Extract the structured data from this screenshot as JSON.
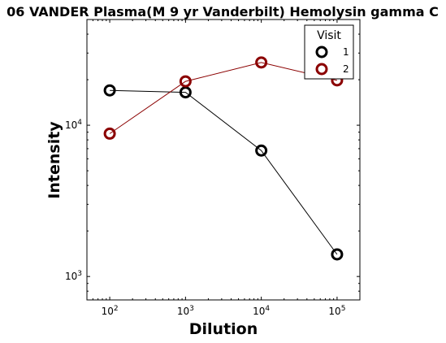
{
  "chart_data": {
    "type": "line",
    "title": "06 VANDER Plasma(M 9 yr Vanderbilt) Hemolysin gamma C",
    "xlabel": "Dilution",
    "ylabel": "Intensity",
    "x_scale": "log",
    "y_scale": "log",
    "xlim": [
      50,
      200000
    ],
    "ylim": [
      700,
      50000
    ],
    "x_ticks": [
      {
        "value": 100,
        "base": "10",
        "exp": "2"
      },
      {
        "value": 1000,
        "base": "10",
        "exp": "3"
      },
      {
        "value": 10000,
        "base": "10",
        "exp": "4"
      },
      {
        "value": 100000,
        "base": "10",
        "exp": "5"
      }
    ],
    "y_ticks": [
      {
        "value": 1000,
        "base": "10",
        "exp": "3"
      },
      {
        "value": 10000,
        "base": "10",
        "exp": "4"
      }
    ],
    "legend": {
      "title": "Visit",
      "position": "top-right"
    },
    "series": [
      {
        "name": "1",
        "color": "#000000",
        "x": [
          100,
          1000,
          10000,
          100000
        ],
        "y": [
          17000,
          16500,
          6800,
          1400
        ]
      },
      {
        "name": "2",
        "color": "#8b0000",
        "x": [
          100,
          1000,
          10000,
          100000
        ],
        "y": [
          8800,
          19500,
          26000,
          19800
        ]
      }
    ]
  }
}
